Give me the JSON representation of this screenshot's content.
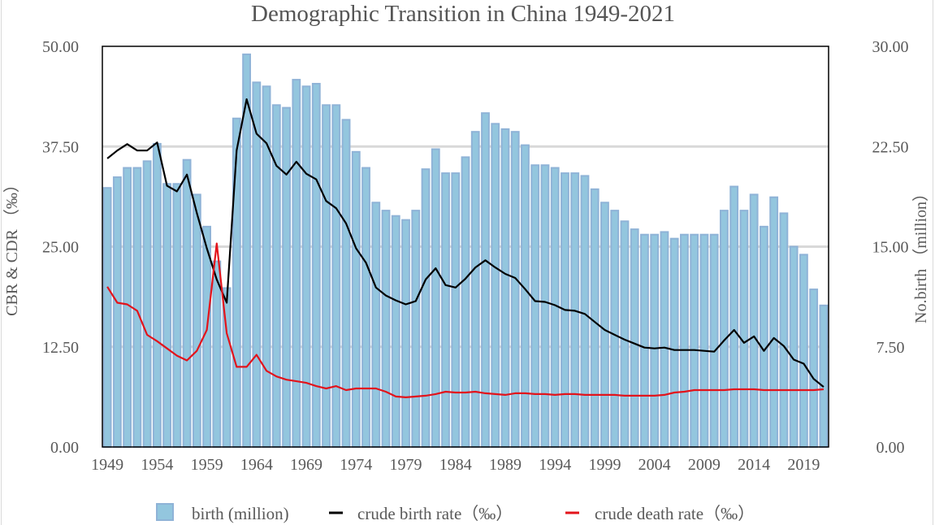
{
  "chart_data": {
    "type": "bar",
    "title": "Demographic Transition in China  1949-2021",
    "xlabel": "",
    "ylabel": "CBR & CDR （‰）",
    "ylabel_right": "No.birth （million）",
    "ylim": [
      0,
      50
    ],
    "ylim_right": [
      0,
      30
    ],
    "yticks": [
      "0.00",
      "12.50",
      "25.00",
      "37.50",
      "50.00"
    ],
    "yticks_right": [
      "0.00",
      "7.50",
      "15.00",
      "22.50",
      "30.00"
    ],
    "xtick_labels": [
      "1949",
      "1954",
      "1959",
      "1964",
      "1969",
      "1974",
      "1979",
      "1984",
      "1989",
      "1994",
      "1999",
      "2004",
      "2009",
      "2014",
      "2019"
    ],
    "grid": true,
    "legend_position": "bottom",
    "colors": {
      "bars": "#93c6de",
      "bar_border": "#8fb3d7",
      "birth_rate": "#000000",
      "death_rate": "#e3131b",
      "grid": "#d9d9d9"
    },
    "x": [
      1949,
      1950,
      1951,
      1952,
      1953,
      1954,
      1955,
      1956,
      1957,
      1958,
      1959,
      1960,
      1961,
      1962,
      1963,
      1964,
      1965,
      1966,
      1967,
      1968,
      1969,
      1970,
      1971,
      1972,
      1973,
      1974,
      1975,
      1976,
      1977,
      1978,
      1979,
      1980,
      1981,
      1982,
      1983,
      1984,
      1985,
      1986,
      1987,
      1988,
      1989,
      1990,
      1991,
      1992,
      1993,
      1994,
      1995,
      1996,
      1997,
      1998,
      1999,
      2000,
      2001,
      2002,
      2003,
      2004,
      2005,
      2006,
      2007,
      2008,
      2009,
      2010,
      2011,
      2012,
      2013,
      2014,
      2015,
      2016,
      2017,
      2018,
      2019,
      2020,
      2021
    ],
    "series": [
      {
        "name": "birth (million)",
        "type": "bar",
        "axis": "right",
        "values": [
          19.4,
          20.2,
          20.9,
          20.9,
          21.4,
          22.7,
          19.7,
          19.7,
          21.5,
          18.9,
          16.5,
          13.9,
          11.9,
          24.6,
          29.4,
          27.3,
          27.0,
          25.6,
          25.4,
          27.5,
          27.0,
          27.2,
          25.6,
          25.6,
          24.5,
          22.1,
          20.9,
          18.3,
          17.7,
          17.3,
          17.0,
          17.7,
          20.8,
          22.3,
          20.5,
          20.5,
          21.7,
          23.6,
          25.0,
          24.2,
          23.8,
          23.6,
          22.6,
          21.1,
          21.1,
          20.9,
          20.5,
          20.5,
          20.3,
          19.3,
          18.3,
          17.7,
          16.9,
          16.3,
          15.9,
          15.9,
          16.1,
          15.6,
          15.9,
          15.9,
          15.9,
          15.9,
          17.7,
          19.5,
          17.7,
          18.9,
          16.5,
          18.7,
          17.5,
          15.0,
          14.4,
          11.8,
          10.6
        ]
      },
      {
        "name": "crude birth rate（‰）",
        "type": "line",
        "axis": "left",
        "values": [
          36.0,
          37.0,
          37.8,
          37.0,
          37.0,
          38.0,
          32.6,
          31.9,
          34.0,
          29.2,
          24.8,
          20.9,
          18.0,
          37.0,
          43.4,
          39.1,
          37.9,
          35.1,
          34.0,
          35.6,
          34.1,
          33.4,
          30.7,
          29.8,
          27.9,
          24.8,
          23.0,
          19.9,
          18.9,
          18.3,
          17.8,
          18.2,
          20.9,
          22.3,
          20.2,
          19.9,
          21.0,
          22.4,
          23.3,
          22.4,
          21.6,
          21.1,
          19.7,
          18.2,
          18.1,
          17.7,
          17.1,
          17.0,
          16.6,
          15.6,
          14.6,
          14.0,
          13.4,
          12.9,
          12.4,
          12.3,
          12.4,
          12.1,
          12.1,
          12.1,
          12.0,
          11.9,
          13.3,
          14.6,
          13.0,
          13.8,
          12.0,
          13.6,
          12.6,
          10.9,
          10.4,
          8.5,
          7.5
        ]
      },
      {
        "name": "crude death rate（‰）",
        "type": "line",
        "axis": "left",
        "values": [
          20.0,
          18.0,
          17.8,
          17.0,
          14.0,
          13.2,
          12.3,
          11.4,
          10.8,
          12.0,
          14.6,
          25.4,
          14.2,
          10.0,
          10.0,
          11.5,
          9.5,
          8.8,
          8.4,
          8.2,
          8.0,
          7.6,
          7.3,
          7.6,
          7.1,
          7.3,
          7.3,
          7.3,
          6.9,
          6.3,
          6.2,
          6.3,
          6.4,
          6.6,
          6.9,
          6.8,
          6.8,
          6.9,
          6.7,
          6.6,
          6.5,
          6.7,
          6.7,
          6.6,
          6.6,
          6.5,
          6.6,
          6.6,
          6.5,
          6.5,
          6.5,
          6.5,
          6.4,
          6.4,
          6.4,
          6.4,
          6.5,
          6.8,
          6.9,
          7.1,
          7.1,
          7.1,
          7.1,
          7.2,
          7.2,
          7.2,
          7.1,
          7.1,
          7.1,
          7.1,
          7.1,
          7.1,
          7.2
        ]
      }
    ],
    "legend": [
      {
        "label": "birth (million)",
        "symbol": "square"
      },
      {
        "label": "crude birth rate（‰）",
        "symbol": "line"
      },
      {
        "label": "crude death rate（‰）",
        "symbol": "line"
      }
    ]
  }
}
